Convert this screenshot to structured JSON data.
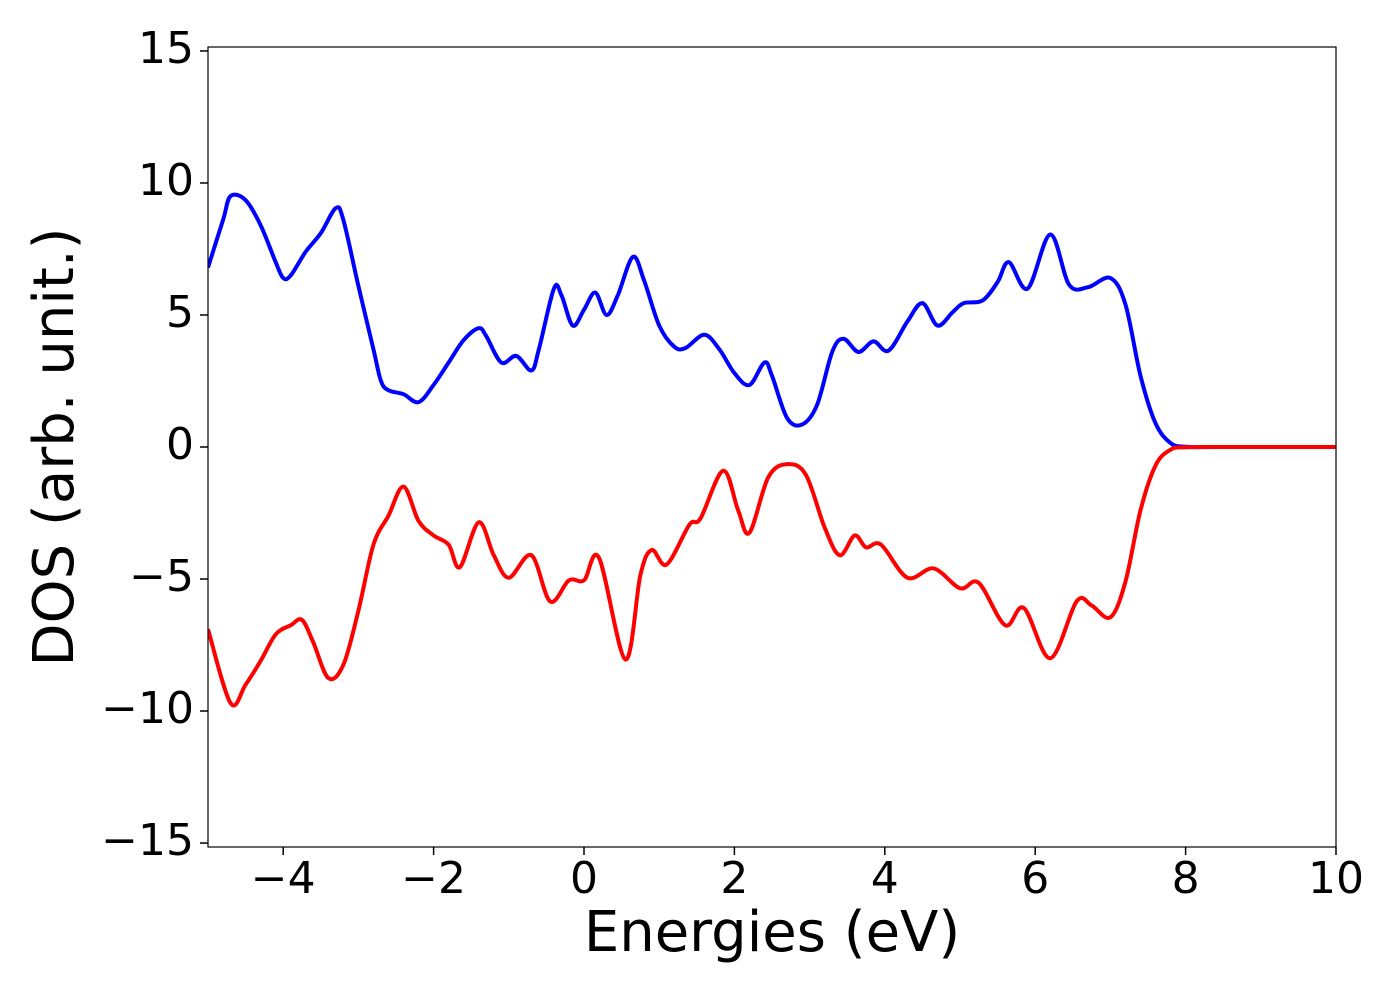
{
  "chart_data": {
    "type": "line",
    "xlabel": "Energies (eV)",
    "ylabel": "DOS (arb. unit.)",
    "xlim": [
      -5,
      10
    ],
    "ylim": [
      -15.15,
      15.15
    ],
    "xticks": [
      {
        "value": -4,
        "label": "−4"
      },
      {
        "value": -2,
        "label": "−2"
      },
      0,
      2,
      4,
      6,
      8,
      10
    ],
    "yticks": [
      {
        "value": -15,
        "label": "−15"
      },
      {
        "value": -10,
        "label": "−10"
      },
      {
        "value": -5,
        "label": "−5"
      },
      0,
      5,
      10,
      15
    ],
    "series": [
      {
        "color": "#0000ff",
        "x": [
          -5,
          -4.8,
          -4.7,
          -4.5,
          -4.3,
          -4.1,
          -4.0,
          -3.9,
          -3.7,
          -3.5,
          -3.3,
          -3.2,
          -3.0,
          -2.8,
          -2.7,
          -2.6,
          -2.4,
          -2.2,
          -2.0,
          -1.8,
          -1.6,
          -1.4,
          -1.3,
          -1.1,
          -0.9,
          -0.7,
          -0.6,
          -0.4,
          -0.3,
          -0.15,
          0.0,
          0.15,
          0.3,
          0.45,
          0.65,
          0.8,
          1.0,
          1.2,
          1.35,
          1.6,
          1.8,
          2.0,
          2.2,
          2.4,
          2.5,
          2.7,
          2.9,
          3.1,
          3.3,
          3.45,
          3.65,
          3.85,
          4.05,
          4.3,
          4.5,
          4.7,
          4.9,
          5.05,
          5.3,
          5.5,
          5.65,
          5.9,
          6.2,
          6.45,
          6.7,
          7.0,
          7.2,
          7.4,
          7.6,
          7.8,
          8.0,
          8.5,
          10
        ],
        "values": [
          6.8,
          8.6,
          9.5,
          9.35,
          8.4,
          7.0,
          6.4,
          6.5,
          7.4,
          8.1,
          9.05,
          8.6,
          6.1,
          3.7,
          2.5,
          2.15,
          2.0,
          1.7,
          2.35,
          3.2,
          4.05,
          4.5,
          4.2,
          3.2,
          3.45,
          2.9,
          3.7,
          6.0,
          5.75,
          4.6,
          5.2,
          5.85,
          5.0,
          5.75,
          7.2,
          6.3,
          4.6,
          3.8,
          3.75,
          4.25,
          3.7,
          2.8,
          2.35,
          3.2,
          2.7,
          1.1,
          0.85,
          1.6,
          3.6,
          4.1,
          3.6,
          4.0,
          3.65,
          4.75,
          5.45,
          4.6,
          5.1,
          5.45,
          5.55,
          6.25,
          7.0,
          6.0,
          8.05,
          6.15,
          6.05,
          6.4,
          5.4,
          2.7,
          0.9,
          0.15,
          0.01,
          0,
          0
        ]
      },
      {
        "color": "#ff0000",
        "x": [
          -5,
          -4.7,
          -4.5,
          -4.3,
          -4.1,
          -3.9,
          -3.75,
          -3.6,
          -3.4,
          -3.2,
          -3.0,
          -2.8,
          -2.6,
          -2.4,
          -2.2,
          -2.0,
          -1.8,
          -1.65,
          -1.4,
          -1.2,
          -1.0,
          -0.7,
          -0.45,
          -0.2,
          0.0,
          0.2,
          0.55,
          0.75,
          0.9,
          1.1,
          1.4,
          1.55,
          1.85,
          2.05,
          2.2,
          2.45,
          2.7,
          2.95,
          3.2,
          3.4,
          3.6,
          3.75,
          3.95,
          4.3,
          4.65,
          5.0,
          5.25,
          5.6,
          5.85,
          6.2,
          6.55,
          6.75,
          7.0,
          7.2,
          7.4,
          7.6,
          7.8,
          8.0,
          8.5,
          10
        ],
        "values": [
          -6.9,
          -9.7,
          -9.0,
          -8.1,
          -7.1,
          -6.75,
          -6.55,
          -7.4,
          -8.75,
          -8.25,
          -6.2,
          -3.7,
          -2.6,
          -1.5,
          -2.8,
          -3.35,
          -3.7,
          -4.55,
          -2.85,
          -4.1,
          -4.95,
          -4.1,
          -5.85,
          -5.05,
          -5.05,
          -4.2,
          -8.05,
          -4.85,
          -3.9,
          -4.45,
          -2.95,
          -2.7,
          -0.9,
          -2.4,
          -3.25,
          -1.15,
          -0.65,
          -1.05,
          -3.05,
          -4.1,
          -3.35,
          -3.8,
          -3.7,
          -4.95,
          -4.6,
          -5.35,
          -5.15,
          -6.75,
          -6.1,
          -8.0,
          -5.85,
          -6.0,
          -6.45,
          -5.1,
          -2.4,
          -0.7,
          -0.1,
          -0.01,
          0,
          0
        ]
      }
    ]
  }
}
